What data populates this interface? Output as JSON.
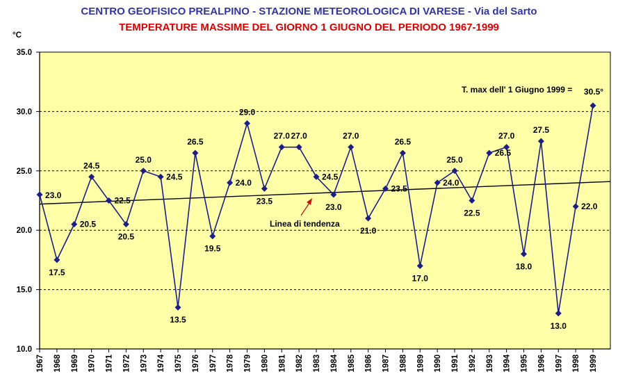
{
  "chart_data": {
    "type": "line",
    "title": "CENTRO GEOFISICO PREALPINO - STAZIONE METEOROLOGICA DI VARESE - Via del Sarto",
    "subtitle": "TEMPERATURE MASSIME DEL GIORNO 1 GIUGNO DEL PERIODO 1967-1999",
    "ylabel": "°C",
    "ylim": [
      10,
      35
    ],
    "yticks": [
      "10.0",
      "15.0",
      "20.0",
      "25.0",
      "30.0",
      "35.0"
    ],
    "grid": "horizontal-dashed",
    "x": [
      "1967",
      "1968",
      "1969",
      "1970",
      "1971",
      "1972",
      "1973",
      "1974",
      "1975",
      "1976",
      "1977",
      "1978",
      "1979",
      "1980",
      "1981",
      "1982",
      "1983",
      "1984",
      "1985",
      "1986",
      "1987",
      "1988",
      "1989",
      "1990",
      "1991",
      "1992",
      "1993",
      "1994",
      "1995",
      "1996",
      "1997",
      "1998",
      "1999"
    ],
    "values": [
      23.0,
      17.5,
      20.5,
      24.5,
      22.5,
      20.5,
      25.0,
      24.5,
      13.5,
      26.5,
      19.5,
      24.0,
      29.0,
      23.5,
      27.0,
      27.0,
      24.5,
      23.0,
      27.0,
      21.0,
      23.5,
      26.5,
      17.0,
      24.0,
      25.0,
      22.5,
      26.5,
      27.0,
      18.0,
      27.5,
      13.0,
      22.0,
      30.5
    ],
    "labels": [
      "23.0",
      "17.5",
      "20.5",
      "24.5",
      "22.5",
      "20.5",
      "25.0",
      "24.5",
      "13.5",
      "26.5",
      "19.5",
      "24.0",
      "29.0",
      "23.5",
      "27.0",
      "27.0",
      "24.5",
      "23.0",
      "27.0",
      "21.0",
      "23.5",
      "26.5",
      "17.0",
      "24.0",
      "25.0",
      "22.5",
      "26.5",
      "27.0",
      "18.0",
      "27.5",
      "13.0",
      "22.0",
      "30.5"
    ],
    "trend": {
      "start": 22.2,
      "end": 24.1
    },
    "annotations": {
      "trend_label": "Linea di tendenza",
      "max_label": "T. max dell' 1 Giugno 1999 ="
    },
    "colors": {
      "plot_bg": "#ffffa8",
      "series": "#1c1c8c",
      "trend": "#000000",
      "annotation": "#cc1111",
      "title": "#3434a8",
      "subtitle": "#e00000"
    }
  }
}
